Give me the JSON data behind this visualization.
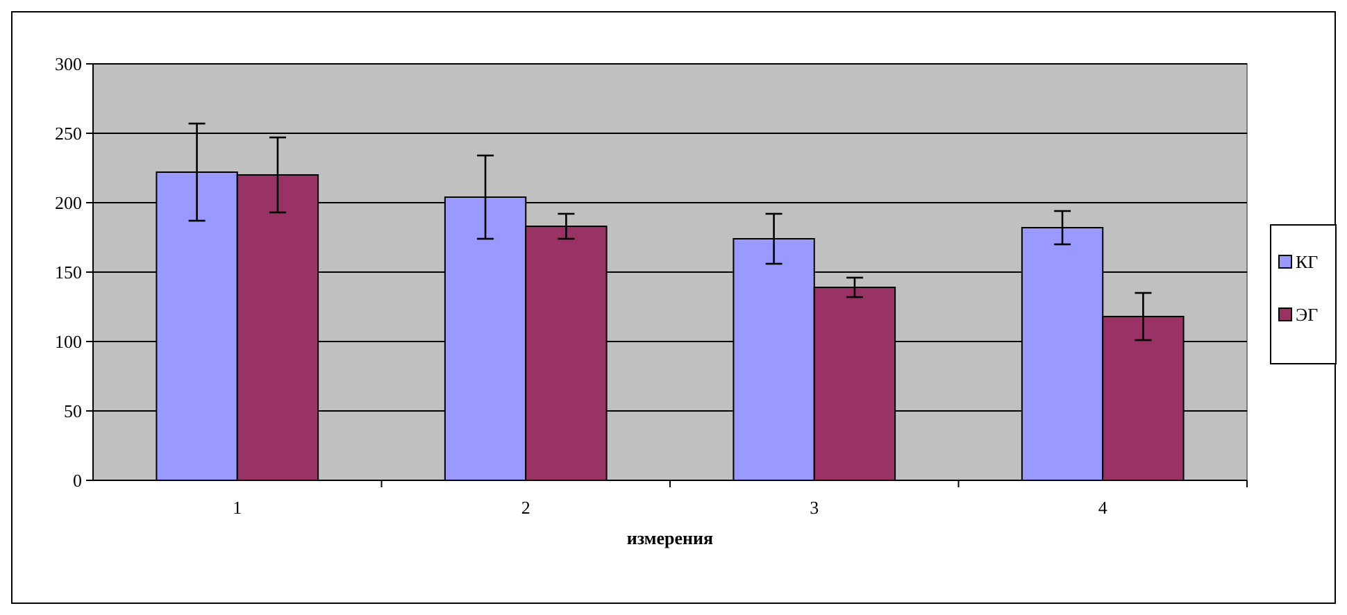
{
  "chart_data": {
    "type": "bar",
    "xlabel": "измерения",
    "categories": [
      "1",
      "2",
      "3",
      "4"
    ],
    "series": [
      {
        "name": "КГ",
        "color": "#9999ff",
        "values": [
          222,
          204,
          174,
          182
        ],
        "errors": [
          35,
          30,
          18,
          12
        ]
      },
      {
        "name": "ЭГ",
        "color": "#993366",
        "values": [
          220,
          183,
          139,
          118
        ],
        "errors": [
          27,
          9,
          7,
          17
        ]
      }
    ],
    "ylim": [
      0,
      300
    ],
    "yticks": [
      0,
      50,
      100,
      150,
      200,
      250,
      300
    ],
    "grid": "y",
    "legend": "right"
  }
}
